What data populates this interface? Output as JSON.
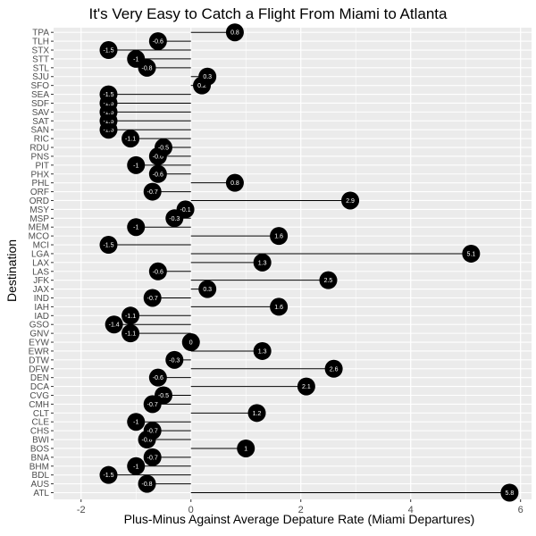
{
  "chart_data": {
    "type": "lollipop",
    "title": "It's Very Easy to Catch a Flight From Miami to Atlanta",
    "xlabel": "Plus-Minus Against Average Depature Rate (Miami Departures)",
    "ylabel": "Destination",
    "xlim": [
      -2.5,
      6.2
    ],
    "xticks": [
      -2,
      0,
      2,
      4,
      6
    ],
    "grid": true,
    "point_color": "#000000",
    "label_color": "#ffffff",
    "panel_background": "#ebebeb",
    "gridline_color": "#ffffff",
    "categories": [
      "ATL",
      "AUS",
      "BDL",
      "BHM",
      "BNA",
      "BOS",
      "BWI",
      "CHS",
      "CLE",
      "CLT",
      "CMH",
      "CVG",
      "DCA",
      "DEN",
      "DFW",
      "DTW",
      "EWR",
      "EYW",
      "GNV",
      "GSO",
      "IAD",
      "IAH",
      "IND",
      "JAX",
      "JFK",
      "LAS",
      "LAX",
      "LGA",
      "MCI",
      "MCO",
      "MEM",
      "MSP",
      "MSY",
      "ORD",
      "ORF",
      "PHL",
      "PHX",
      "PIT",
      "PNS",
      "RDU",
      "RIC",
      "SAN",
      "SAT",
      "SAV",
      "SDF",
      "SEA",
      "SFO",
      "SJU",
      "STL",
      "STT",
      "STX",
      "TLH",
      "TPA"
    ],
    "values": [
      5.8,
      -0.8,
      -1.5,
      -1,
      -0.7,
      1,
      -0.8,
      -0.7,
      -1,
      1.2,
      -0.7,
      -0.5,
      2.1,
      -0.6,
      2.6,
      -0.3,
      1.3,
      0,
      -1.1,
      -1.4,
      -1.1,
      1.6,
      -0.7,
      0.3,
      2.5,
      -0.6,
      1.3,
      5.1,
      -1.5,
      1.6,
      -1,
      -0.3,
      -0.1,
      2.9,
      -0.7,
      0.8,
      -0.6,
      -1,
      -0.6,
      -0.5,
      -1.1,
      -1.5,
      -1.5,
      -1.5,
      -1.5,
      -1.5,
      0.2,
      0.3,
      -0.8,
      -1,
      -1.5,
      -0.6,
      0.8
    ],
    "point_labels": [
      "5.8",
      "-0.8",
      "-1.5",
      "-1",
      "-0.7",
      "1",
      "-0.8",
      "-0.7",
      "-1",
      "1.2",
      "-0.7",
      "-0.5",
      "2.1",
      "-0.6",
      "2.6",
      "-0.3",
      "1.3",
      "0",
      "-1.1",
      "-1.4",
      "-1.1",
      "1.6",
      "-0.7",
      "0.3",
      "2.5",
      "-0.6",
      "1.3",
      "5.1",
      "-1.5",
      "1.6",
      "-1",
      "-0.3",
      "-0.1",
      "2.9",
      "-0.7",
      "0.8",
      "-0.6",
      "-1",
      "-0.6",
      "-0.5",
      "-1.1",
      "-1.5",
      "-1.5",
      "-1.5",
      "-1.5",
      "-1.5",
      "0.2",
      "0.3",
      "-0.8",
      "-1",
      "-1.5",
      "-0.6",
      "0.8"
    ],
    "xtick_labels": [
      "-2",
      "0",
      "2",
      "4",
      "6"
    ]
  }
}
